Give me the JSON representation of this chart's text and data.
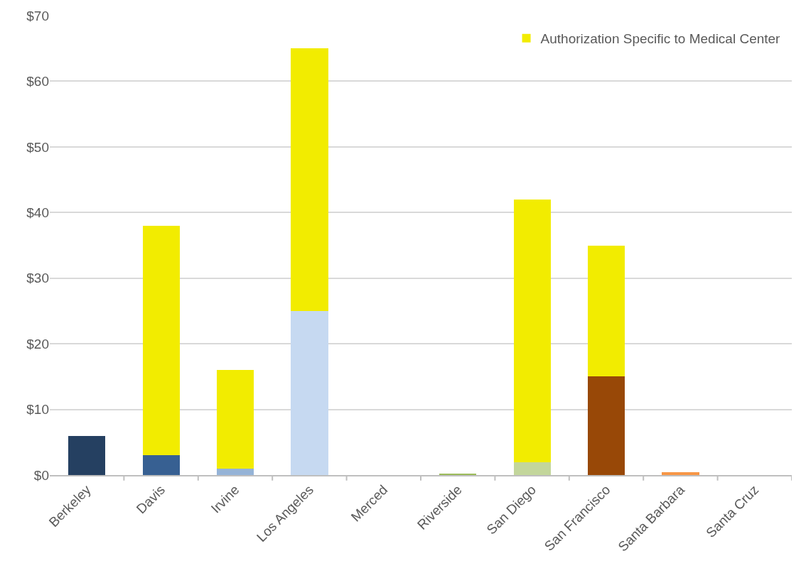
{
  "chart_data": {
    "type": "bar",
    "stacked": true,
    "categories": [
      "Berkeley",
      "Davis",
      "Irvine",
      "Los Angeles",
      "Merced",
      "Riverside",
      "San Diego",
      "San Francisco",
      "Santa Barbara",
      "Santa Cruz"
    ],
    "series": [
      {
        "colors": [
          "#254061",
          "#376092",
          "#95b3d7",
          "#c6d9f1",
          "#7f7f7f",
          "#9bbb59",
          "#c3d69b",
          "#984807",
          "#f79646",
          "#8064a2"
        ],
        "values": [
          6,
          3,
          1,
          25,
          0,
          0.2,
          2,
          15,
          0.4,
          0
        ]
      },
      {
        "name": "Authorization Specific to Medical Center",
        "color": "#f2ec00",
        "values": [
          null,
          35,
          15,
          40,
          null,
          null,
          40,
          20,
          null,
          null
        ]
      }
    ],
    "ylim": [
      0,
      70
    ],
    "yticks": [
      {
        "value": 0,
        "label": "$0"
      },
      {
        "value": 10,
        "label": "$10"
      },
      {
        "value": 20,
        "label": "$20"
      },
      {
        "value": 30,
        "label": "$30"
      },
      {
        "value": 40,
        "label": "$40"
      },
      {
        "value": 50,
        "label": "$50"
      },
      {
        "value": 60,
        "label": "$60"
      },
      {
        "value": 70,
        "label": "$70"
      }
    ],
    "grid": "y",
    "legend": "top right"
  }
}
